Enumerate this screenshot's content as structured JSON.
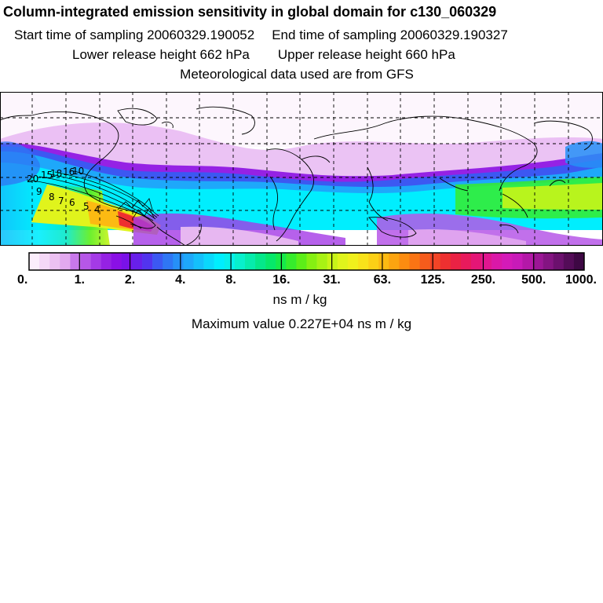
{
  "header": {
    "title": "Column-integrated emission sensitivity in global domain for c130_060329",
    "start": "Start time of sampling 20060329.190052",
    "end": "End time of sampling 20060329.190327",
    "lower": "Lower release height  662 hPa",
    "upper": "Upper release height  660 hPa",
    "met": "Meteorological data used are from GFS"
  },
  "colorbar": {
    "labels": [
      "0.",
      "1.",
      "2.",
      "4.",
      "8.",
      "16.",
      "31.",
      "63.",
      "125.",
      "250.",
      "500.",
      "1000."
    ],
    "units": "ns m / kg",
    "colors": [
      "#fbeefc",
      "#f4d8f7",
      "#ecc1f2",
      "#e2a9ef",
      "#c878ea",
      "#b657e8",
      "#a43ae6",
      "#9522e4",
      "#8a10e6",
      "#7a12e8",
      "#6820ea",
      "#5234ee",
      "#3c58f2",
      "#2f76f4",
      "#2690f7",
      "#1ea8fa",
      "#14c0fb",
      "#0ad8fc",
      "#00eefe",
      "#06f0ea",
      "#08f0cc",
      "#06ecac",
      "#04e88a",
      "#06e86a",
      "#16ea4a",
      "#36ec2c",
      "#5cee18",
      "#86f012",
      "#a8f214",
      "#c8f418",
      "#e0f41c",
      "#f0f01c",
      "#f8e21a",
      "#fcd016",
      "#fcba12",
      "#fca410",
      "#fc8c10",
      "#fa7414",
      "#f65c1c",
      "#f24426",
      "#ee3030",
      "#ea2244",
      "#e81a5c",
      "#e41676",
      "#e01690",
      "#da18a8",
      "#d41ab8",
      "#c81ab8",
      "#b418a8",
      "#9c1696",
      "#841482",
      "#6c106e",
      "#540c58",
      "#3e0844"
    ],
    "max_value": "Maximum value  0.227E+04 ns m / kg"
  },
  "map": {
    "contour_labels": [
      "20",
      "15",
      "18",
      "16",
      "10",
      "9",
      "8",
      "7",
      "6",
      "5",
      "4"
    ]
  }
}
